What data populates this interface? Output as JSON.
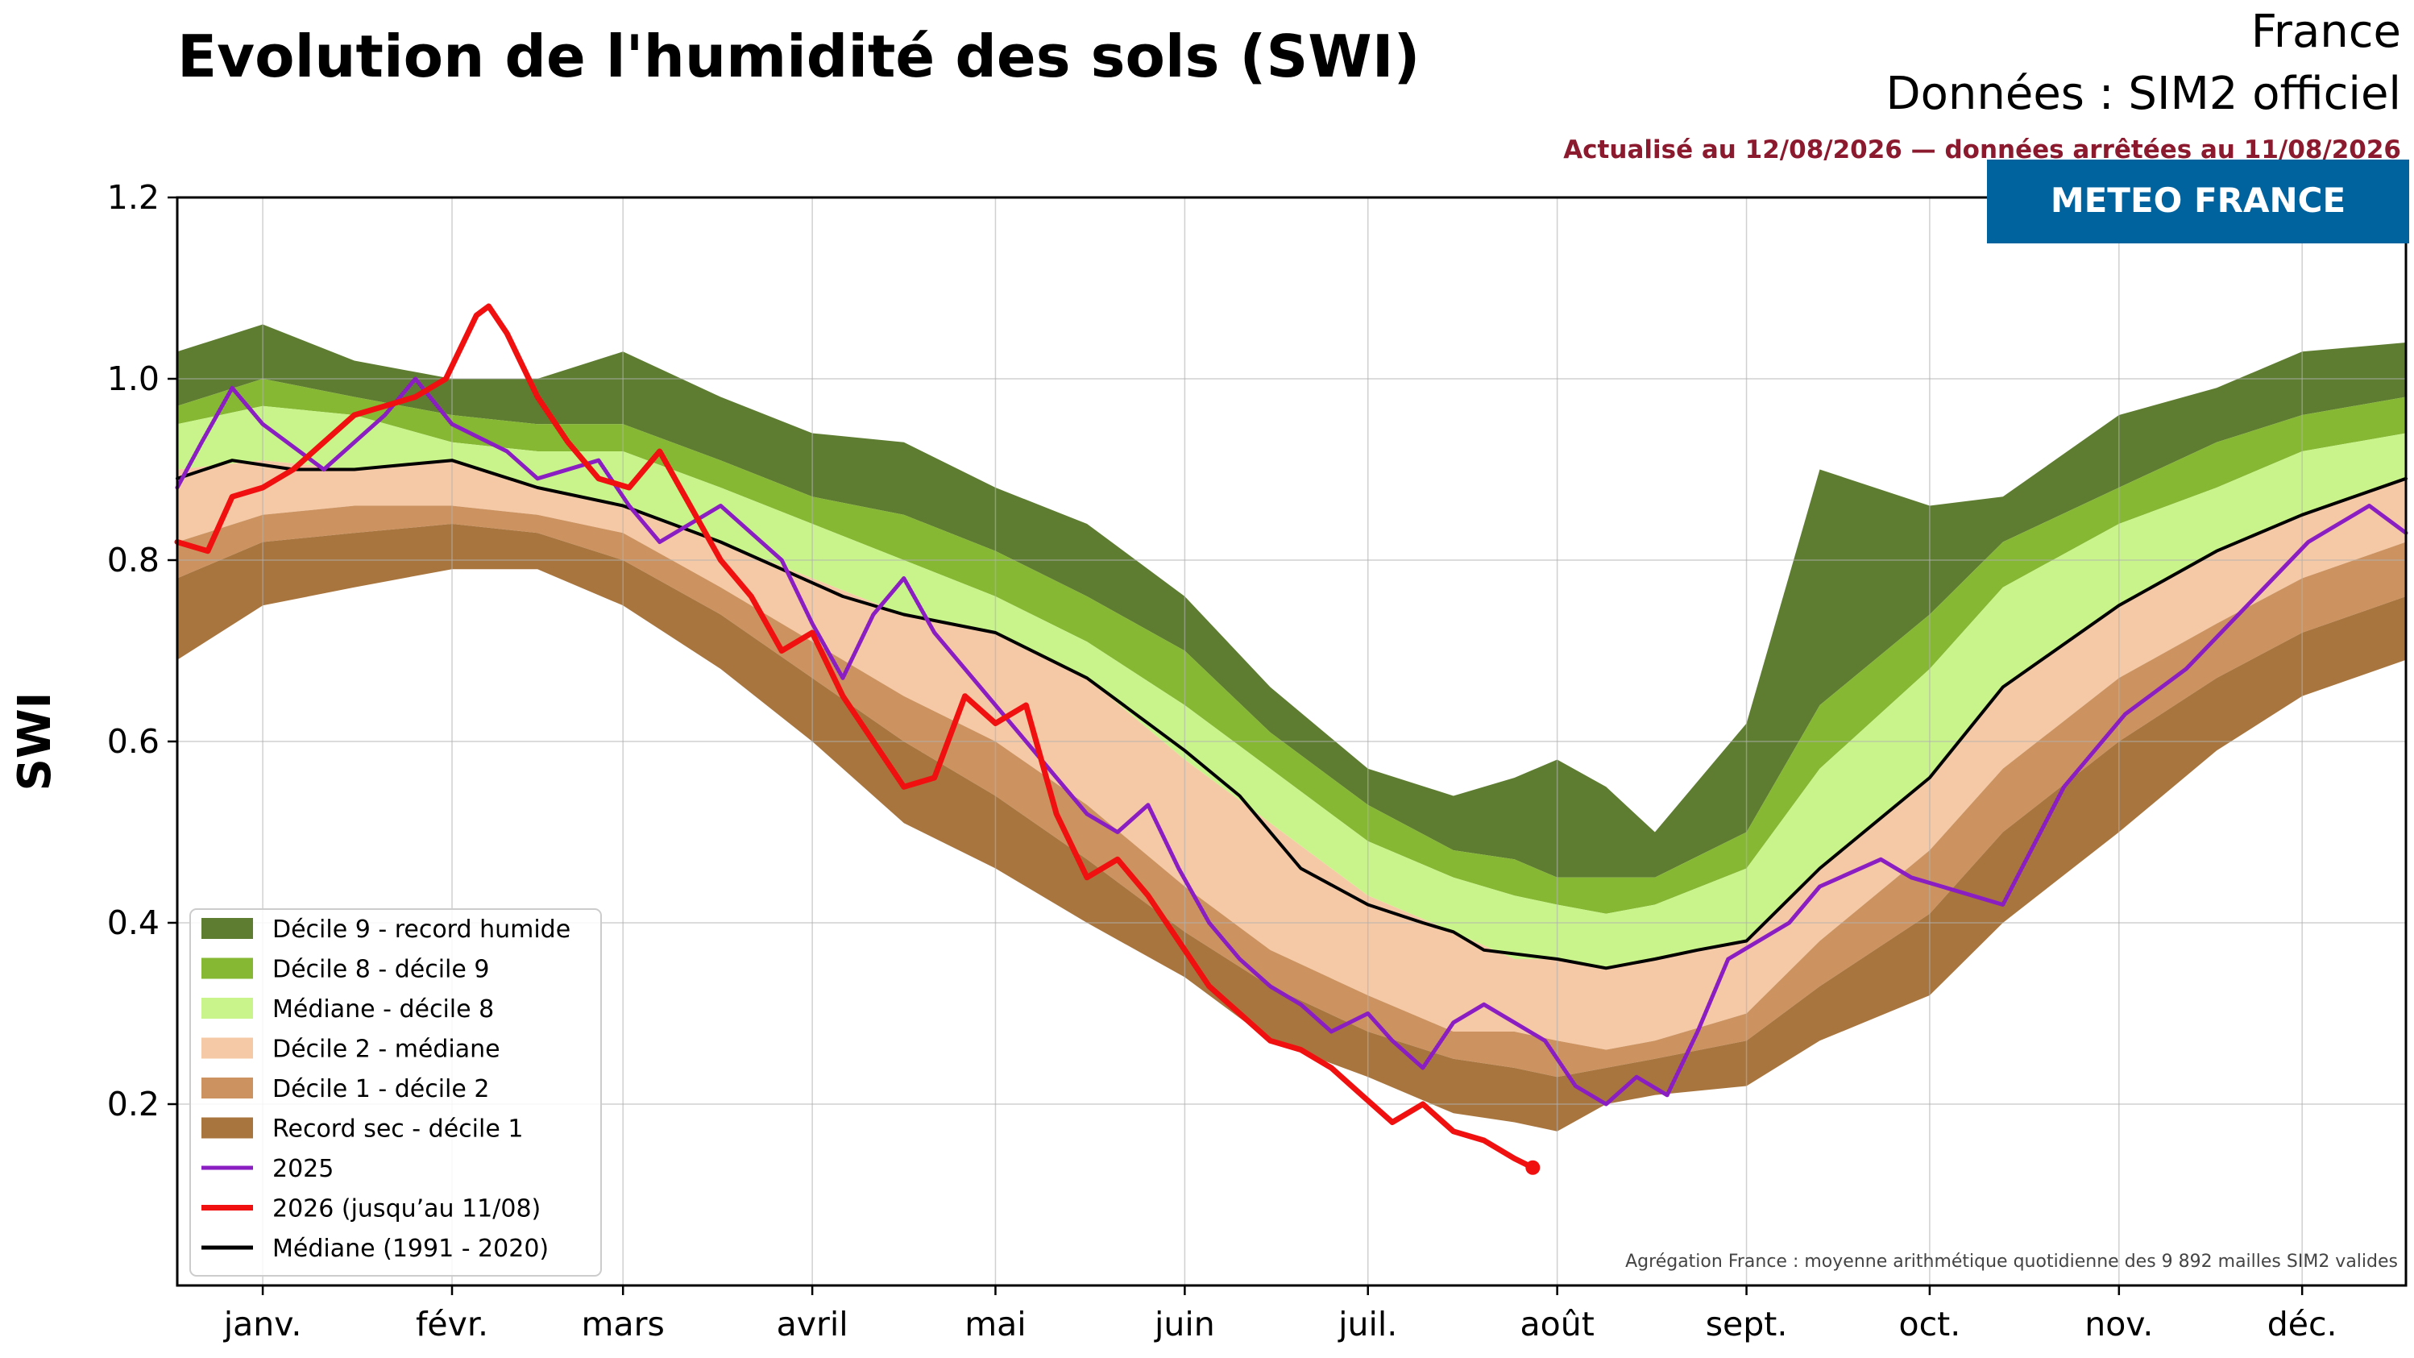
{
  "header": {
    "title": "Evolution de l'humidité des sols (SWI)",
    "region": "France",
    "data_source": "Données : SIM2 officiel",
    "updated": "Actualisé au 12/08/2026 — données arrêtées au 11/08/2026",
    "badge": "METEO FRANCE"
  },
  "footnote": "Agrégation France : moyenne arithmétique quotidienne des 9 892 mailles SIM2 valides",
  "colors": {
    "updated_text": "#8b1a2e",
    "badge_bg": "#00639e",
    "band_d9_record_wet": "#5e7d31",
    "band_d8_d9": "#86b834",
    "band_median_d8": "#c9f48b",
    "band_d2_median": "#f5c9a6",
    "band_d1_d2": "#cc9360",
    "band_record_dry_d1": "#a8753f",
    "line_2025": "#8a1ec2",
    "line_2026": "#f01010",
    "line_median": "#000000"
  },
  "chart_data": {
    "type": "area",
    "title": "Evolution de l'humidité des sols (SWI)",
    "xlabel": "",
    "ylabel": "SWI",
    "xlim": [
      1,
      366
    ],
    "ylim": [
      0,
      1.2
    ],
    "x_unit": "day of year",
    "yticks": [
      0.2,
      0.4,
      0.6,
      0.8,
      1.0,
      1.2
    ],
    "ytick_labels": [
      "0.2",
      "0.4",
      "0.6",
      "0.8",
      "1.0",
      "1.2"
    ],
    "month_ticks": [
      15,
      46,
      74,
      105,
      135,
      166,
      196,
      227,
      258,
      288,
      319,
      349
    ],
    "month_labels": [
      "janv.",
      "févr.",
      "mars",
      "avril",
      "mai",
      "juin",
      "juil.",
      "août",
      "sept.",
      "oct.",
      "nov.",
      "déc."
    ],
    "grid": true,
    "legend_position": "lower-left",
    "legend": [
      {
        "label": "Décile 9 - record humide",
        "kind": "band",
        "color_key": "band_d9_record_wet"
      },
      {
        "label": "Décile 8 - décile 9",
        "kind": "band",
        "color_key": "band_d8_d9"
      },
      {
        "label": "Médiane - décile 8",
        "kind": "band",
        "color_key": "band_median_d8"
      },
      {
        "label": "Décile 2 - médiane",
        "kind": "band",
        "color_key": "band_d2_median"
      },
      {
        "label": "Décile 1 - décile 2",
        "kind": "band",
        "color_key": "band_d1_d2"
      },
      {
        "label": "Record sec - décile 1",
        "kind": "band",
        "color_key": "band_record_dry_d1"
      },
      {
        "label": "2025",
        "kind": "line",
        "color_key": "line_2025"
      },
      {
        "label": "2026 (jusqu’au 11/08)",
        "kind": "line",
        "color_key": "line_2026"
      },
      {
        "label": "Médiane (1991 - 2020)",
        "kind": "line",
        "color_key": "line_median"
      }
    ],
    "climatology_x": [
      1,
      15,
      30,
      46,
      60,
      74,
      90,
      105,
      120,
      135,
      150,
      166,
      180,
      196,
      210,
      220,
      227,
      235,
      243,
      258,
      270,
      288,
      300,
      319,
      335,
      349,
      366
    ],
    "record_wet": [
      1.03,
      1.06,
      1.02,
      1.0,
      1.0,
      1.03,
      0.98,
      0.94,
      0.93,
      0.88,
      0.84,
      0.76,
      0.66,
      0.57,
      0.54,
      0.56,
      0.58,
      0.55,
      0.5,
      0.62,
      0.9,
      0.86,
      0.87,
      0.96,
      0.99,
      1.03,
      1.04
    ],
    "d9": [
      0.97,
      1.0,
      0.98,
      0.96,
      0.95,
      0.95,
      0.91,
      0.87,
      0.85,
      0.81,
      0.76,
      0.7,
      0.61,
      0.53,
      0.48,
      0.47,
      0.45,
      0.45,
      0.45,
      0.5,
      0.64,
      0.74,
      0.82,
      0.88,
      0.93,
      0.96,
      0.98
    ],
    "d8": [
      0.95,
      0.97,
      0.96,
      0.93,
      0.92,
      0.92,
      0.88,
      0.84,
      0.8,
      0.76,
      0.71,
      0.64,
      0.57,
      0.49,
      0.45,
      0.43,
      0.42,
      0.41,
      0.42,
      0.46,
      0.57,
      0.68,
      0.77,
      0.84,
      0.88,
      0.92,
      0.94
    ],
    "median": [
      0.9,
      0.91,
      0.9,
      0.91,
      0.88,
      0.86,
      0.82,
      0.78,
      0.74,
      0.72,
      0.67,
      0.58,
      0.51,
      0.43,
      0.39,
      0.36,
      0.36,
      0.35,
      0.36,
      0.38,
      0.46,
      0.56,
      0.66,
      0.75,
      0.81,
      0.85,
      0.89
    ],
    "d2": [
      0.82,
      0.85,
      0.86,
      0.86,
      0.85,
      0.83,
      0.77,
      0.71,
      0.65,
      0.6,
      0.53,
      0.44,
      0.37,
      0.32,
      0.28,
      0.28,
      0.27,
      0.26,
      0.27,
      0.3,
      0.38,
      0.48,
      0.57,
      0.67,
      0.73,
      0.78,
      0.82
    ],
    "d1": [
      0.78,
      0.82,
      0.83,
      0.84,
      0.83,
      0.8,
      0.74,
      0.67,
      0.6,
      0.54,
      0.47,
      0.39,
      0.33,
      0.28,
      0.25,
      0.24,
      0.23,
      0.24,
      0.25,
      0.27,
      0.33,
      0.41,
      0.5,
      0.6,
      0.67,
      0.72,
      0.76
    ],
    "record_dry": [
      0.69,
      0.75,
      0.77,
      0.79,
      0.79,
      0.75,
      0.68,
      0.6,
      0.51,
      0.46,
      0.4,
      0.34,
      0.27,
      0.23,
      0.19,
      0.18,
      0.17,
      0.2,
      0.21,
      0.22,
      0.27,
      0.32,
      0.4,
      0.5,
      0.59,
      0.65,
      0.69
    ],
    "series": [
      {
        "name": "Médiane (1991 - 2020)",
        "x": [
          1,
          10,
          20,
          30,
          46,
          60,
          74,
          90,
          100,
          110,
          120,
          135,
          150,
          158,
          166,
          175,
          185,
          196,
          205,
          210,
          215,
          227,
          235,
          243,
          250,
          258,
          270,
          288,
          300,
          319,
          335,
          349,
          366
        ],
        "y": [
          0.89,
          0.91,
          0.9,
          0.9,
          0.91,
          0.88,
          0.86,
          0.82,
          0.79,
          0.76,
          0.74,
          0.72,
          0.67,
          0.63,
          0.59,
          0.54,
          0.46,
          0.42,
          0.4,
          0.39,
          0.37,
          0.36,
          0.35,
          0.36,
          0.37,
          0.38,
          0.46,
          0.56,
          0.66,
          0.75,
          0.81,
          0.85,
          0.89
        ]
      },
      {
        "name": "2025",
        "x": [
          1,
          5,
          10,
          15,
          25,
          35,
          40,
          46,
          55,
          60,
          70,
          75,
          80,
          90,
          100,
          105,
          110,
          115,
          120,
          125,
          130,
          135,
          140,
          145,
          150,
          155,
          160,
          165,
          170,
          175,
          180,
          185,
          190,
          196,
          200,
          205,
          210,
          215,
          220,
          225,
          230,
          235,
          240,
          245,
          250,
          255,
          260,
          265,
          270,
          280,
          285,
          290,
          300,
          310,
          320,
          330,
          340,
          350,
          355,
          360,
          366
        ],
        "y": [
          0.88,
          0.93,
          0.99,
          0.95,
          0.9,
          0.96,
          1.0,
          0.95,
          0.92,
          0.89,
          0.91,
          0.86,
          0.82,
          0.86,
          0.8,
          0.73,
          0.67,
          0.74,
          0.78,
          0.72,
          0.68,
          0.64,
          0.6,
          0.56,
          0.52,
          0.5,
          0.53,
          0.46,
          0.4,
          0.36,
          0.33,
          0.31,
          0.28,
          0.3,
          0.27,
          0.24,
          0.29,
          0.31,
          0.29,
          0.27,
          0.22,
          0.2,
          0.23,
          0.21,
          0.28,
          0.36,
          0.38,
          0.4,
          0.44,
          0.47,
          0.45,
          0.44,
          0.42,
          0.55,
          0.63,
          0.68,
          0.75,
          0.82,
          0.84,
          0.86,
          0.83
        ]
      },
      {
        "name": "2026 (jusqu’au 11/08)",
        "x": [
          1,
          6,
          10,
          15,
          20,
          30,
          35,
          40,
          45,
          50,
          52,
          55,
          60,
          65,
          70,
          75,
          80,
          85,
          90,
          95,
          100,
          105,
          110,
          115,
          120,
          125,
          130,
          135,
          140,
          145,
          150,
          155,
          160,
          165,
          170,
          175,
          180,
          185,
          190,
          195,
          200,
          205,
          210,
          215,
          220,
          223
        ],
        "y": [
          0.82,
          0.81,
          0.87,
          0.88,
          0.9,
          0.96,
          0.97,
          0.98,
          1.0,
          1.07,
          1.08,
          1.05,
          0.98,
          0.93,
          0.89,
          0.88,
          0.92,
          0.86,
          0.8,
          0.76,
          0.7,
          0.72,
          0.65,
          0.6,
          0.55,
          0.56,
          0.65,
          0.62,
          0.64,
          0.52,
          0.45,
          0.47,
          0.43,
          0.38,
          0.33,
          0.3,
          0.27,
          0.26,
          0.24,
          0.21,
          0.18,
          0.2,
          0.17,
          0.16,
          0.14,
          0.13
        ]
      }
    ]
  }
}
